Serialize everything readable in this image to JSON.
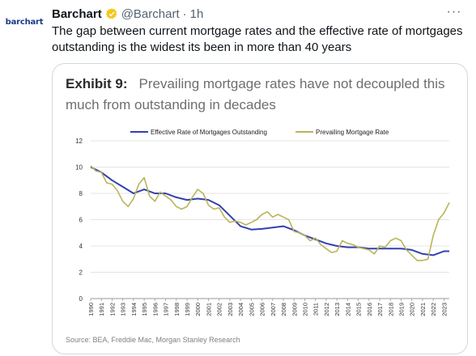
{
  "tweet": {
    "avatar_text": "barchart",
    "author_name": "Barchart",
    "handle": "@Barchart",
    "separator": "·",
    "time": "1h",
    "more": "···",
    "text": "The gap between current mortgage rates and the effective rate of mortgages outstanding is the widest its been in more than 40 years"
  },
  "exhibit": {
    "label": "Exhibit 9:",
    "title": "Prevailing mortgage rates have not decoupled this much from outstanding in decades",
    "source": "Source: BEA, Freddie Mac, Morgan Stanley Research"
  },
  "colors": {
    "effective": "#3340b0",
    "prevailing": "#b9b45a",
    "verified": "#f5c518"
  },
  "icons": {
    "verified": "verified-badge-icon",
    "more": "more-options-icon"
  },
  "chart_data": {
    "type": "line",
    "title": "",
    "xlabel": "",
    "ylabel": "",
    "ylim": [
      0,
      12
    ],
    "xlim": [
      1990,
      2023.5
    ],
    "yticks": [
      0,
      2,
      4,
      6,
      8,
      10,
      12
    ],
    "xticks": [
      "1990",
      "1991",
      "1992",
      "1993",
      "1994",
      "1995",
      "1996",
      "1997",
      "1998",
      "1999",
      "2000",
      "2001",
      "2002",
      "2003",
      "2004",
      "2005",
      "2006",
      "2007",
      "2008",
      "2009",
      "2010",
      "2011",
      "2012",
      "2013",
      "2014",
      "2015",
      "2016",
      "2017",
      "2018",
      "2019",
      "2020",
      "2021",
      "2022",
      "2023"
    ],
    "grid": "horizontal",
    "legend_position": "top",
    "series": [
      {
        "name": "Effective Rate of Mortgages Outstanding",
        "color": "#3340b0",
        "points": [
          [
            1990,
            10.0
          ],
          [
            1991,
            9.6
          ],
          [
            1992,
            9.0
          ],
          [
            1993,
            8.5
          ],
          [
            1994,
            8.0
          ],
          [
            1995,
            8.3
          ],
          [
            1996,
            8.0
          ],
          [
            1997,
            8.0
          ],
          [
            1998,
            7.7
          ],
          [
            1999,
            7.5
          ],
          [
            2000,
            7.6
          ],
          [
            2001,
            7.5
          ],
          [
            2002,
            7.1
          ],
          [
            2003,
            6.3
          ],
          [
            2004,
            5.5
          ],
          [
            2005,
            5.25
          ],
          [
            2006,
            5.3
          ],
          [
            2007,
            5.4
          ],
          [
            2008,
            5.5
          ],
          [
            2009,
            5.2
          ],
          [
            2010,
            4.8
          ],
          [
            2011,
            4.5
          ],
          [
            2012,
            4.2
          ],
          [
            2013,
            4.0
          ],
          [
            2014,
            3.9
          ],
          [
            2015,
            3.9
          ],
          [
            2016,
            3.8
          ],
          [
            2017,
            3.8
          ],
          [
            2018,
            3.8
          ],
          [
            2019,
            3.8
          ],
          [
            2020,
            3.7
          ],
          [
            2021,
            3.4
          ],
          [
            2022,
            3.3
          ],
          [
            2023,
            3.6
          ],
          [
            2023.5,
            3.6
          ]
        ]
      },
      {
        "name": "Prevailing Mortgage Rate",
        "color": "#b9b45a",
        "points": [
          [
            1990,
            10.1
          ],
          [
            1990.5,
            9.7
          ],
          [
            1991,
            9.6
          ],
          [
            1991.5,
            8.8
          ],
          [
            1992,
            8.7
          ],
          [
            1992.5,
            8.2
          ],
          [
            1993,
            7.4
          ],
          [
            1993.5,
            7.0
          ],
          [
            1994,
            7.6
          ],
          [
            1994.5,
            8.7
          ],
          [
            1995,
            9.2
          ],
          [
            1995.5,
            7.8
          ],
          [
            1996,
            7.4
          ],
          [
            1996.5,
            8.1
          ],
          [
            1997,
            7.8
          ],
          [
            1997.5,
            7.5
          ],
          [
            1998,
            7.0
          ],
          [
            1998.5,
            6.8
          ],
          [
            1999,
            7.0
          ],
          [
            1999.5,
            7.7
          ],
          [
            2000,
            8.3
          ],
          [
            2000.5,
            8.0
          ],
          [
            2001,
            7.1
          ],
          [
            2001.5,
            6.8
          ],
          [
            2002,
            6.9
          ],
          [
            2002.5,
            6.2
          ],
          [
            2003,
            5.8
          ],
          [
            2003.5,
            5.9
          ],
          [
            2004,
            5.8
          ],
          [
            2004.5,
            5.6
          ],
          [
            2005,
            5.8
          ],
          [
            2005.5,
            6.0
          ],
          [
            2006,
            6.4
          ],
          [
            2006.5,
            6.6
          ],
          [
            2007,
            6.2
          ],
          [
            2007.5,
            6.4
          ],
          [
            2008,
            6.2
          ],
          [
            2008.5,
            6.0
          ],
          [
            2009,
            5.1
          ],
          [
            2009.5,
            5.0
          ],
          [
            2010,
            4.8
          ],
          [
            2010.5,
            4.4
          ],
          [
            2011,
            4.6
          ],
          [
            2011.5,
            4.1
          ],
          [
            2012,
            3.8
          ],
          [
            2012.5,
            3.5
          ],
          [
            2013,
            3.6
          ],
          [
            2013.5,
            4.4
          ],
          [
            2014,
            4.2
          ],
          [
            2014.5,
            4.1
          ],
          [
            2015,
            3.9
          ],
          [
            2015.5,
            3.8
          ],
          [
            2016,
            3.7
          ],
          [
            2016.5,
            3.4
          ],
          [
            2017,
            4.0
          ],
          [
            2017.5,
            3.9
          ],
          [
            2018,
            4.4
          ],
          [
            2018.5,
            4.6
          ],
          [
            2019,
            4.4
          ],
          [
            2019.5,
            3.7
          ],
          [
            2020,
            3.3
          ],
          [
            2020.5,
            2.9
          ],
          [
            2021,
            2.9
          ],
          [
            2021.5,
            3.0
          ],
          [
            2022,
            4.8
          ],
          [
            2022.5,
            6.0
          ],
          [
            2023,
            6.5
          ],
          [
            2023.5,
            7.3
          ]
        ]
      }
    ]
  }
}
